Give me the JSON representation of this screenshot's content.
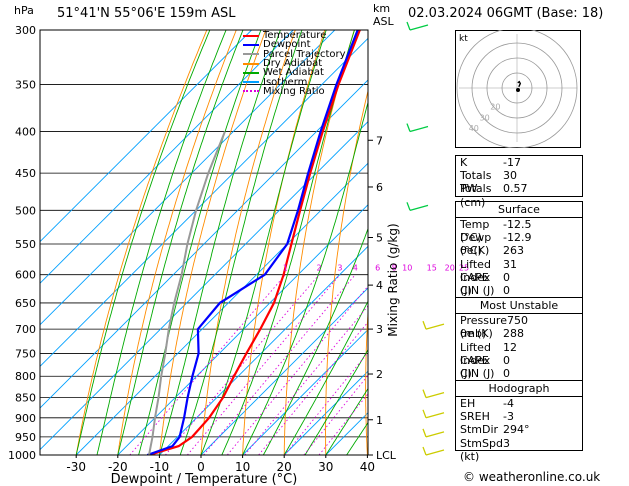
{
  "header": {
    "location": "51°41'N  55°06'E  159m  ASL",
    "datetime": "02.03.2024  06GMT  (Base: 18)",
    "hpa_unit": "hPa",
    "km_unit": "km",
    "asl_unit": "ASL",
    "copyright": "© weatheronline.co.uk"
  },
  "legend": [
    {
      "label": "Temperature",
      "color": "#ff0000",
      "style": "solid"
    },
    {
      "label": "Dewpoint",
      "color": "#0000ff",
      "style": "solid"
    },
    {
      "label": "Parcel Trajectory",
      "color": "#999999",
      "style": "solid"
    },
    {
      "label": "Dry Adiabat",
      "color": "#ff8c00",
      "style": "solid"
    },
    {
      "label": "Wet Adiabat",
      "color": "#00aa00",
      "style": "solid"
    },
    {
      "label": "Isotherm",
      "color": "#00a0ff",
      "style": "solid"
    },
    {
      "label": "Mixing Ratio",
      "color": "#dd00dd",
      "style": "dotted"
    }
  ],
  "chart_data": {
    "type": "skew-t",
    "xlabel": "Dewpoint / Temperature (°C)",
    "ylabel_right": "Mixing Ratio (g/kg)",
    "x_ticks": [
      "-30",
      "-20",
      "-10",
      "0",
      "10",
      "20",
      "30",
      "40"
    ],
    "pressure_ticks": [
      "300",
      "350",
      "400",
      "450",
      "500",
      "550",
      "600",
      "650",
      "700",
      "750",
      "800",
      "850",
      "900",
      "950",
      "1000"
    ],
    "km_ticks": [
      {
        "label": "7",
        "p": 410
      },
      {
        "label": "6",
        "p": 468
      },
      {
        "label": "5",
        "p": 540
      },
      {
        "label": "4",
        "p": 618
      },
      {
        "label": "3",
        "p": 700
      },
      {
        "label": "2",
        "p": 795
      },
      {
        "label": "1",
        "p": 905
      },
      {
        "label": "LCL",
        "p": 1000
      }
    ],
    "mixing_ratio_labels": [
      "1",
      "2",
      "3",
      "4",
      "6",
      "8",
      "10",
      "15",
      "20",
      "25"
    ],
    "isotherms": [
      -90,
      -80,
      -70,
      -60,
      -50,
      -40,
      -30,
      -20,
      -10,
      0,
      10,
      20,
      30,
      40
    ],
    "dry_adiabats_theta": [
      -30,
      -20,
      -10,
      0,
      10,
      20,
      30,
      40,
      50,
      60,
      70,
      80,
      90,
      100,
      110,
      120
    ],
    "mixing_ratios": [
      1,
      2,
      3,
      4,
      6,
      8,
      10,
      15,
      20,
      25
    ],
    "series": [
      {
        "name": "Temperature",
        "color": "#ff0000",
        "points": [
          [
            1000,
            -12.5
          ],
          [
            975,
            -7.5
          ],
          [
            950,
            -6.5
          ],
          [
            900,
            -7
          ],
          [
            850,
            -8.5
          ],
          [
            800,
            -11
          ],
          [
            750,
            -13.5
          ],
          [
            700,
            -16
          ],
          [
            650,
            -19
          ],
          [
            600,
            -23.5
          ],
          [
            550,
            -29
          ],
          [
            500,
            -35
          ],
          [
            450,
            -41.5
          ],
          [
            400,
            -48.5
          ],
          [
            350,
            -56
          ],
          [
            300,
            -64
          ]
        ]
      },
      {
        "name": "Dewpoint",
        "color": "#0000ff",
        "points": [
          [
            1000,
            -12.9
          ],
          [
            975,
            -9
          ],
          [
            950,
            -9.5
          ],
          [
            900,
            -13
          ],
          [
            850,
            -17
          ],
          [
            800,
            -21
          ],
          [
            750,
            -25
          ],
          [
            700,
            -31
          ],
          [
            650,
            -32
          ],
          [
            600,
            -28
          ],
          [
            550,
            -30
          ],
          [
            500,
            -35.5
          ],
          [
            450,
            -42
          ],
          [
            400,
            -49
          ],
          [
            350,
            -56.5
          ],
          [
            300,
            -64.5
          ]
        ]
      },
      {
        "name": "Parcel Trajectory",
        "color": "#999999",
        "points": [
          [
            1000,
            -12.5
          ],
          [
            950,
            -16
          ],
          [
            900,
            -20
          ],
          [
            850,
            -24
          ],
          [
            800,
            -28.5
          ],
          [
            750,
            -33
          ],
          [
            700,
            -38
          ],
          [
            650,
            -43
          ],
          [
            600,
            -48
          ],
          [
            550,
            -54
          ],
          [
            500,
            -60
          ],
          [
            450,
            -66
          ],
          [
            400,
            -72
          ]
        ]
      }
    ],
    "wind_barbs_p": [
      300,
      400,
      500,
      700,
      850,
      900,
      950,
      1000
    ]
  },
  "hodograph": {
    "unit_label": "kt",
    "ring_labels": [
      "40",
      "30",
      "20"
    ],
    "trace": [
      [
        1.2,
        0.8
      ],
      [
        2.2,
        3
      ],
      [
        1.5,
        4.2
      ],
      [
        0.5,
        3.5
      ]
    ]
  },
  "indices": {
    "basic": [
      {
        "label": "K",
        "value": "-17"
      },
      {
        "label": "Totals Totals",
        "value": "30"
      },
      {
        "label": "PW (cm)",
        "value": "0.57"
      }
    ],
    "surface_title": "Surface",
    "surface": [
      {
        "label": "Temp (°C)",
        "value": "-12.5"
      },
      {
        "label": "Dewp (°C)",
        "value": "-12.9"
      },
      {
        "label": "θe(K)",
        "value": "263"
      },
      {
        "label": "Lifted Index",
        "value": "31"
      },
      {
        "label": "CAPE (J)",
        "value": "0"
      },
      {
        "label": "CIN (J)",
        "value": "0"
      }
    ],
    "unstable_title": "Most Unstable",
    "unstable": [
      {
        "label": "Pressure (mb)",
        "value": "750"
      },
      {
        "label": "θe (K)",
        "value": "288"
      },
      {
        "label": "Lifted Index",
        "value": "12"
      },
      {
        "label": "CAPE (J)",
        "value": "0"
      },
      {
        "label": "CIN (J)",
        "value": "0"
      }
    ],
    "hodo_title": "Hodograph",
    "hodo": [
      {
        "label": "EH",
        "value": "-4"
      },
      {
        "label": "SREH",
        "value": "-3"
      },
      {
        "label": "StmDir",
        "value": "294°"
      },
      {
        "label": "StmSpd (kt)",
        "value": "3"
      }
    ]
  }
}
